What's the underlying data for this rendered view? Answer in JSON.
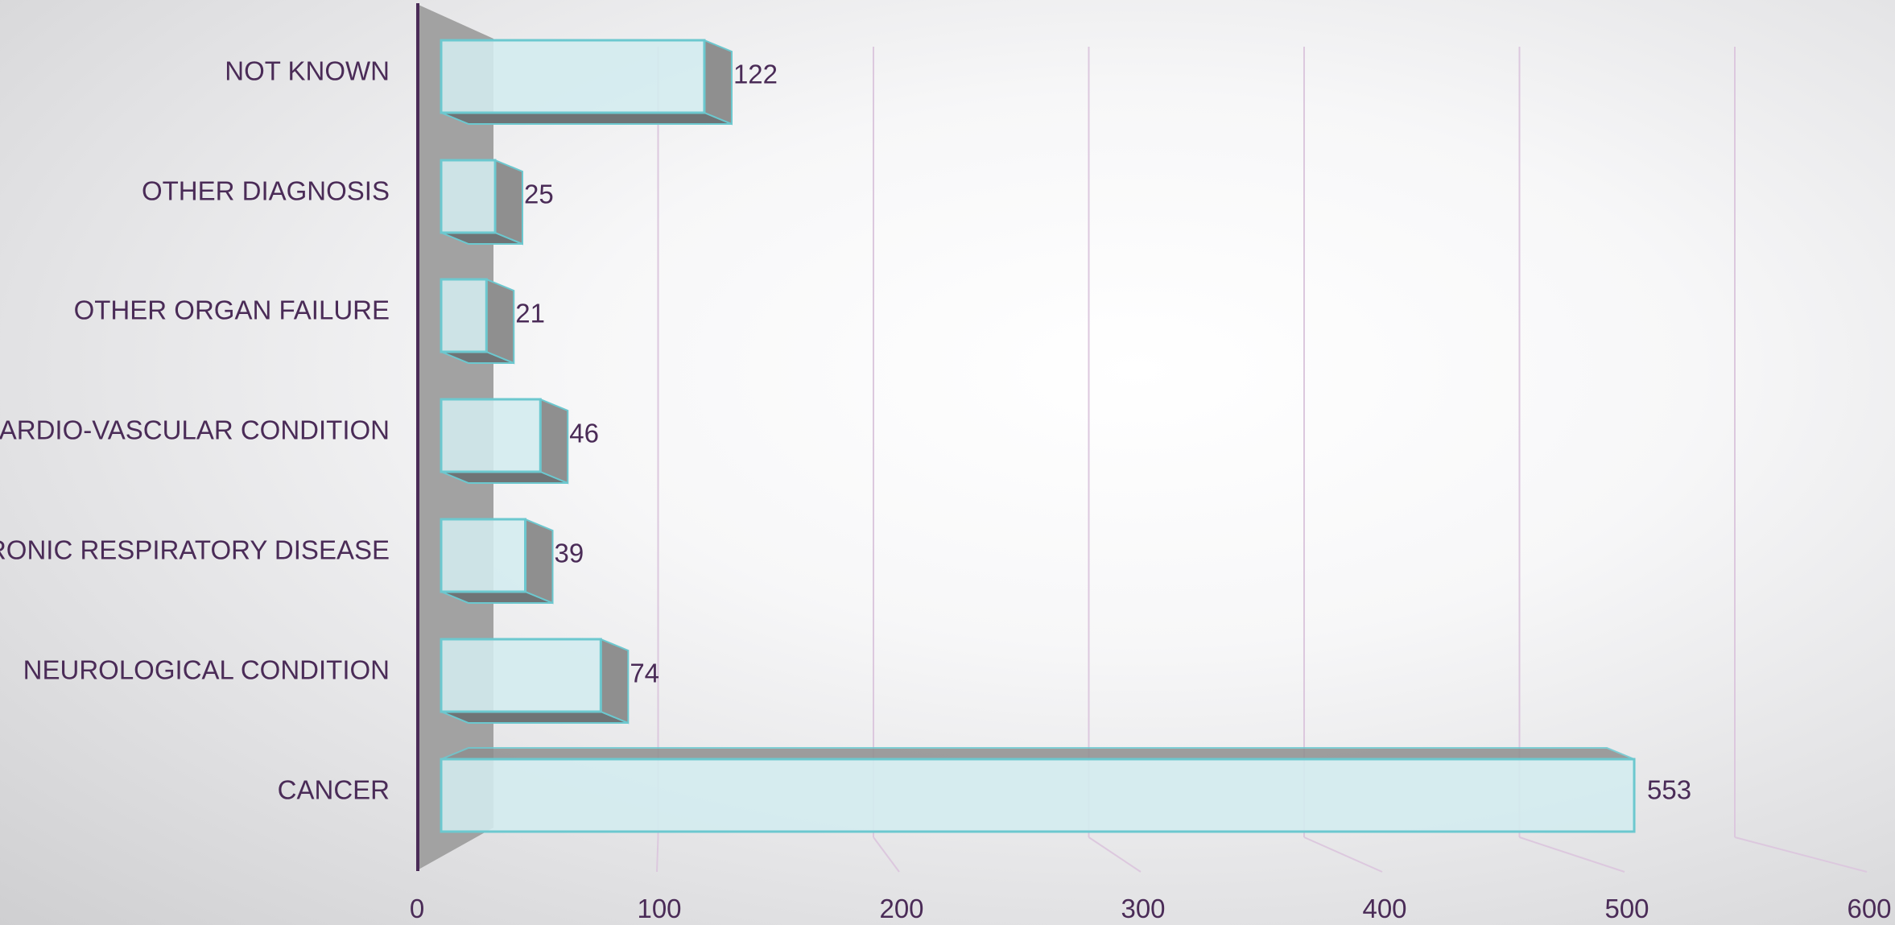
{
  "chart_data": {
    "type": "bar",
    "orientation": "horizontal",
    "style": "3d",
    "categories": [
      "NOT KNOWN",
      "OTHER DIAGNOSIS",
      "OTHER ORGAN FAILURE",
      "CARDIO-VASCULAR CONDITION",
      "CHRONIC RESPIRATORY DISEASE",
      "NEUROLOGICAL CONDITION",
      "CANCER"
    ],
    "values": [
      122,
      25,
      21,
      46,
      39,
      74,
      553
    ],
    "data_labels": [
      "122",
      "25",
      "21",
      "46",
      "39",
      "74",
      "553"
    ],
    "xticks": [
      "0",
      "100",
      "200",
      "300",
      "400",
      "500",
      "600"
    ],
    "xlim": [
      0,
      600
    ],
    "grid": "vertical",
    "legend": "none",
    "title": "",
    "xlabel": "",
    "ylabel": "",
    "colors": {
      "bar_face": "#d3ecef",
      "bar_edge": "#6cc8cf",
      "bar_side": "#8f8f8f",
      "wall": "#a2a2a2",
      "axis": "#4a2b57",
      "grid": "#dcc8de",
      "text": "#4a2b57"
    }
  }
}
